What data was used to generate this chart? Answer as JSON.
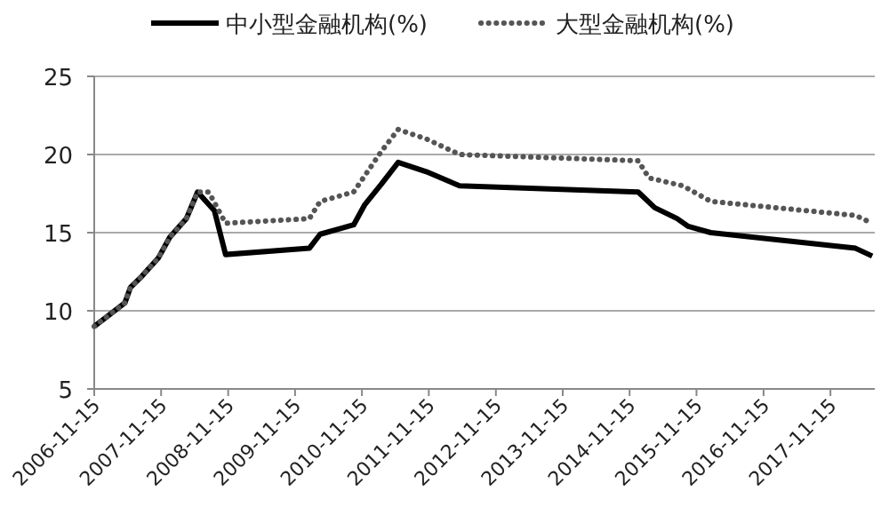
{
  "chart_data": {
    "type": "line",
    "legend": "top",
    "grid": "y",
    "marker": "none",
    "xlim": [
      "2006-11-15",
      "2018-07-15"
    ],
    "xticks": [
      "2006-11-15",
      "2007-11-15",
      "2008-11-15",
      "2009-11-15",
      "2010-11-15",
      "2011-11-15",
      "2012-11-15",
      "2013-11-15",
      "2014-11-15",
      "2015-11-15",
      "2016-11-15",
      "2017-11-15"
    ],
    "ylim": [
      5,
      25
    ],
    "yticks": [
      5,
      10,
      15,
      20,
      25
    ],
    "series": [
      {
        "name": "中小型金融机构(%)",
        "color": "#000000",
        "line_style": "solid",
        "x": [
          "2006-11-15",
          "2007-05",
          "2007-06",
          "2007-08",
          "2007-11",
          "2008-01",
          "2008-03",
          "2008-04",
          "2008-06",
          "2008-09",
          "2008-11",
          "2010-02",
          "2010-04",
          "2010-10",
          "2010-12",
          "2011-03",
          "2011-06",
          "2011-11",
          "2012-05",
          "2015-01",
          "2015-04",
          "2015-08",
          "2015-10",
          "2016-02",
          "2018-04",
          "2018-07"
        ],
        "values": [
          9.0,
          10.5,
          11.5,
          12.2,
          13.4,
          14.7,
          15.5,
          15.9,
          17.6,
          16.4,
          13.6,
          14.0,
          14.9,
          15.5,
          16.8,
          18.1,
          19.5,
          18.9,
          18.0,
          17.6,
          16.6,
          15.9,
          15.4,
          15.0,
          14.0,
          13.5
        ]
      },
      {
        "name": "大型金融机构(%)",
        "color": "#555555",
        "line_style": "dotted",
        "x": [
          "2006-11-15",
          "2007-05",
          "2007-06",
          "2007-08",
          "2007-11",
          "2008-01",
          "2008-03",
          "2008-04",
          "2008-06",
          "2008-08",
          "2008-11",
          "2010-02",
          "2010-04",
          "2010-10",
          "2011-03",
          "2011-06",
          "2011-11",
          "2012-05",
          "2015-01",
          "2015-03",
          "2015-09",
          "2016-02",
          "2018-04",
          "2018-07"
        ],
        "values": [
          9.0,
          10.5,
          11.5,
          12.2,
          13.4,
          14.7,
          15.5,
          15.9,
          17.6,
          17.6,
          15.6,
          15.9,
          17.0,
          17.6,
          20.2,
          21.6,
          21.0,
          20.0,
          19.6,
          18.5,
          18.0,
          17.0,
          16.1,
          15.6
        ]
      }
    ]
  }
}
